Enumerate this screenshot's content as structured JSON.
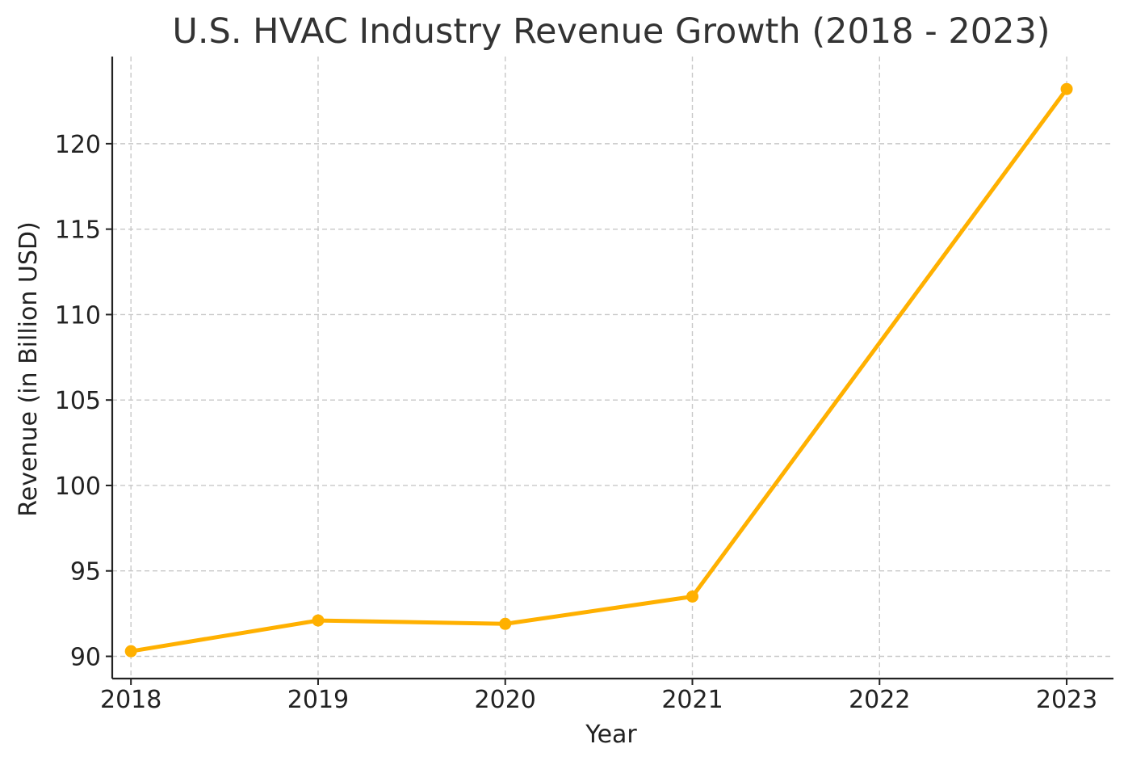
{
  "chart_data": {
    "type": "line",
    "title": "U.S. HVAC Industry Revenue Growth (2018 - 2023)",
    "xlabel": "Year",
    "ylabel": "Revenue (in Billion USD)",
    "x": [
      2018,
      2019,
      2020,
      2021,
      2023
    ],
    "x_ticks": [
      "2018",
      "2019",
      "2020",
      "2021",
      "2022",
      "2023"
    ],
    "y_ticks": [
      "90",
      "95",
      "100",
      "105",
      "110",
      "115",
      "120"
    ],
    "xlim": [
      2017.9,
      2023.25
    ],
    "ylim": [
      88.7,
      125.1
    ],
    "grid": true,
    "series": [
      {
        "values": [
          90.3,
          92.1,
          91.9,
          93.5,
          123.2
        ],
        "color": "#FFB000",
        "marker": "circle"
      }
    ]
  }
}
